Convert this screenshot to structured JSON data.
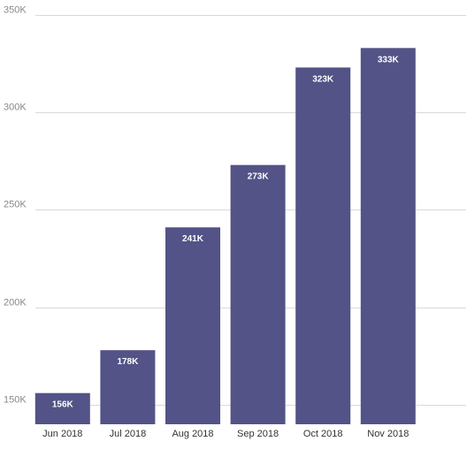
{
  "chart_data": {
    "type": "bar",
    "categories": [
      "Jun 2018",
      "Jul 2018",
      "Aug 2018",
      "Sep 2018",
      "Oct 2018",
      "Nov 2018"
    ],
    "values": [
      156000,
      178000,
      241000,
      273000,
      323000,
      333000
    ],
    "data_labels": [
      "156K",
      "178K",
      "241K",
      "273K",
      "323K",
      "333K"
    ],
    "y_ticks": [
      150000,
      200000,
      250000,
      300000,
      350000
    ],
    "y_tick_labels": [
      "150K",
      "200K",
      "250K",
      "300K",
      "350K"
    ],
    "ylim": [
      140000,
      354000
    ],
    "title": "",
    "xlabel": "",
    "ylabel": "",
    "grid": true,
    "legend": "none",
    "bar_color": "#535387",
    "data_label_color": "#ffffff"
  }
}
